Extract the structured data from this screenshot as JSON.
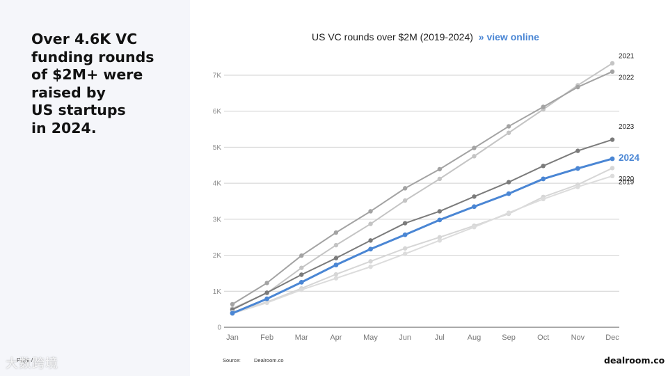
{
  "headline": [
    "Over 4.6K VC",
    "funding rounds",
    "of $2M+ were",
    "raised by",
    "US startups",
    "in 2024."
  ],
  "page_label": "Page /",
  "watermark": "大数跨境",
  "chart_data": {
    "type": "line",
    "title": "US VC rounds over $2M (2019-2024)",
    "link_text": "» view online",
    "categories": [
      "Jan",
      "Feb",
      "Mar",
      "Apr",
      "May",
      "Jun",
      "Jul",
      "Aug",
      "Sep",
      "Oct",
      "Nov",
      "Dec"
    ],
    "y_ticks": [
      "0",
      "1K",
      "2K",
      "3K",
      "4K",
      "5K",
      "6K",
      "7K"
    ],
    "ylim": [
      0,
      7000
    ],
    "grid": true,
    "series": [
      {
        "name": "2021",
        "color": "#c4c4c4",
        "highlight": false,
        "values": [
          520,
          950,
          1650,
          2280,
          2870,
          3520,
          4120,
          4750,
          5400,
          6050,
          6720,
          7330
        ]
      },
      {
        "name": "2022",
        "color": "#a3a3a3",
        "highlight": false,
        "values": [
          640,
          1230,
          1990,
          2630,
          3220,
          3860,
          4390,
          4980,
          5580,
          6120,
          6670,
          7100
        ]
      },
      {
        "name": "2023",
        "color": "#7b7b7b",
        "highlight": false,
        "values": [
          490,
          960,
          1460,
          1920,
          2410,
          2890,
          3220,
          3630,
          4030,
          4480,
          4900,
          5210
        ]
      },
      {
        "name": "2020",
        "color": "#d6d6d6",
        "highlight": false,
        "values": [
          420,
          700,
          1080,
          1470,
          1830,
          2190,
          2500,
          2820,
          3150,
          3620,
          3960,
          4420
        ]
      },
      {
        "name": "2019",
        "color": "#dcdcdc",
        "highlight": false,
        "values": [
          380,
          680,
          1040,
          1360,
          1680,
          2040,
          2410,
          2780,
          3180,
          3560,
          3900,
          4200
        ]
      },
      {
        "name": "2024",
        "color": "#4a86d4",
        "highlight": true,
        "values": [
          390,
          790,
          1250,
          1730,
          2170,
          2570,
          2980,
          3350,
          3710,
          4120,
          4410,
          4680
        ]
      }
    ]
  },
  "source": {
    "label": "Source:",
    "value": "Dealroom.co"
  },
  "brand": "dealroom.co"
}
